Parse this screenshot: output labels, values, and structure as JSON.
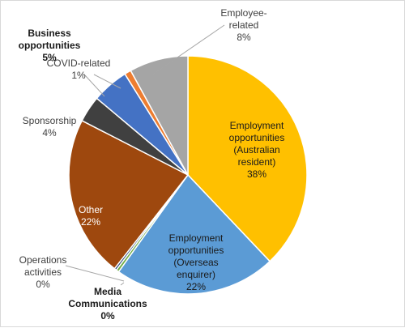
{
  "chart_data": {
    "type": "pie",
    "slices": [
      {
        "lines": [
          "Employment",
          "opportunities",
          "(Australian",
          "resident)"
        ],
        "pct_text": "38%",
        "value": 38,
        "color": "#FFC000",
        "label_color": "#1a1a1a",
        "label_weight": "normal"
      },
      {
        "lines": [
          "Employment",
          "opportunities",
          "(Overseas",
          "enquirer)"
        ],
        "pct_text": "22%",
        "value": 22,
        "color": "#5B9BD5",
        "label_color": "#1a1a1a",
        "label_weight": "normal"
      },
      {
        "lines": [
          "Media",
          "Communications"
        ],
        "pct_text": "0%",
        "value": 0.4,
        "color": "#70AD47",
        "label_color": "#1a1a1a",
        "label_weight": "bold"
      },
      {
        "lines": [
          "Operations",
          "activities"
        ],
        "pct_text": "0%",
        "value": 0.3,
        "color": "#264478",
        "label_color": "#404040",
        "label_weight": "normal"
      },
      {
        "lines": [
          "Other"
        ],
        "pct_text": "22%",
        "value": 22,
        "color": "#9E480E",
        "label_color": "#ffffff",
        "label_weight": "normal"
      },
      {
        "lines": [
          "Sponsorship"
        ],
        "pct_text": "4%",
        "value": 3.6,
        "color": "#404040",
        "label_color": "#404040",
        "label_weight": "normal"
      },
      {
        "lines": [
          "Business",
          "opportunities"
        ],
        "pct_text": "5%",
        "value": 5,
        "color": "#4472C4",
        "label_color": "#1a1a1a",
        "label_weight": "bold"
      },
      {
        "lines": [
          "COVID-related"
        ],
        "pct_text": "1%",
        "value": 0.9,
        "color": "#ED7D31",
        "label_color": "#404040",
        "label_weight": "normal"
      },
      {
        "lines": [
          "Employee-",
          "related"
        ],
        "pct_text": "8%",
        "value": 8,
        "color": "#A5A5A5",
        "label_color": "#404040",
        "label_weight": "normal"
      }
    ]
  }
}
